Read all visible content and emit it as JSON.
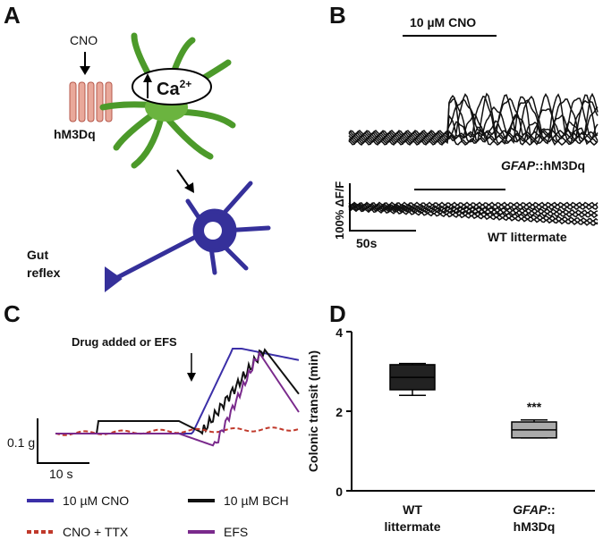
{
  "panels": {
    "A": {
      "letter": "A",
      "drug": "CNO",
      "receptor": "hM3Dq",
      "calcium": [
        "Ca",
        "2+"
      ],
      "output": [
        "Gut",
        "reflex"
      ]
    },
    "B": {
      "letter": "B",
      "bar_label": "10 µM CNO",
      "top_trace_label": [
        "GFAP",
        "::hM3Dq"
      ],
      "scale_y": "100% ΔF/F",
      "scale_x": "50s",
      "bottom_trace_label": "WT littermate"
    },
    "C": {
      "letter": "C",
      "annotation": "Drug added or EFS",
      "scale_y": "0.1 g",
      "scale_x": "10 s",
      "legend": [
        {
          "name": "10 µM CNO",
          "color": "#3b2fa8"
        },
        {
          "name": "10 µM BCH",
          "color": "#111111"
        },
        {
          "name": "CNO + TTX",
          "color": "#c0392b"
        },
        {
          "name": "EFS",
          "color": "#7a2a8c"
        }
      ]
    },
    "D": {
      "letter": "D"
    }
  },
  "chart_data": {
    "type": "box",
    "ylabel": "Colonic transit (min)",
    "categories": [
      [
        "WT",
        "littermate"
      ],
      [
        "GFAP",
        "::",
        "hM3Dq"
      ]
    ],
    "boxes": [
      {
        "low": 2.4,
        "q1": 2.54,
        "median": 2.85,
        "q3": 3.17,
        "high": 3.2,
        "color": "#222222"
      },
      {
        "low": 1.33,
        "q1": 1.33,
        "median": 1.53,
        "q3": 1.73,
        "high": 1.78,
        "color": "#aaaaaa"
      }
    ],
    "annotation": "***",
    "ylim": [
      0,
      4
    ],
    "yticks": [
      0,
      2,
      4
    ]
  }
}
